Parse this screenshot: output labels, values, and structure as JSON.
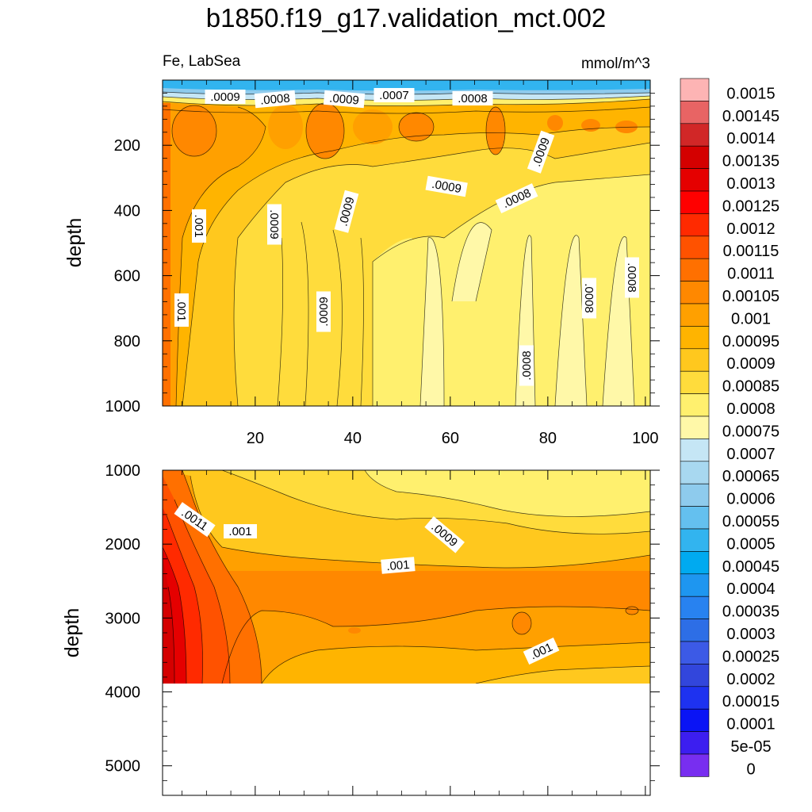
{
  "title": "b1850.f19_g17.validation_mct.002",
  "chart_data": [
    {
      "type": "heatmap",
      "plot_type": "filled contour",
      "panel": "upper",
      "left_label": "Fe, LabSea",
      "right_label": "mmol/m^3",
      "xlabel": "",
      "ylabel": "depth",
      "xlim": [
        1,
        101
      ],
      "ylim": [
        1000,
        0
      ],
      "x_ticks": [
        "20",
        "40",
        "60",
        "80",
        "100"
      ],
      "y_ticks": [
        "200",
        "400",
        "600",
        "800",
        "1000"
      ],
      "contour_labels": [
        ".0009",
        ".0008",
        ".0009",
        ".0007",
        ".0008",
        ".0009",
        ".0009",
        ".0008",
        ".001",
        ".0009",
        ".0009",
        ".001",
        ".0009",
        ".0008",
        ".0008",
        ".0008"
      ],
      "grid": false
    },
    {
      "type": "heatmap",
      "plot_type": "filled contour",
      "panel": "lower",
      "xlabel": "",
      "ylabel": "depth",
      "xlim": [
        1,
        101
      ],
      "ylim": [
        5400,
        1000
      ],
      "y_ticks": [
        "1000",
        "2000",
        "3000",
        "4000",
        "5000"
      ],
      "contour_labels": [
        ".0011",
        ".001",
        ".0009",
        ".001",
        ".001"
      ],
      "missing_below_depth": 3900,
      "grid": false
    }
  ],
  "colorbar": {
    "labels": [
      "0.0015",
      "0.00145",
      "0.0014",
      "0.00135",
      "0.0013",
      "0.00125",
      "0.0012",
      "0.00115",
      "0.0011",
      "0.00105",
      "0.001",
      "0.00095",
      "0.0009",
      "0.00085",
      "0.0008",
      "0.00075",
      "0.0007",
      "0.00065",
      "0.0006",
      "0.00055",
      "0.0005",
      "0.00045",
      "0.0004",
      "0.00035",
      "0.0003",
      "0.00025",
      "0.0002",
      "0.00015",
      "0.0001",
      "5e-05",
      "0"
    ],
    "colors": [
      "#fdb4b4",
      "#e86464",
      "#d12727",
      "#d40000",
      "#e50000",
      "#ff0000",
      "#ff2a00",
      "#ff5200",
      "#ff7000",
      "#ff8800",
      "#ffa000",
      "#ffb400",
      "#ffc81e",
      "#ffdc3c",
      "#fff06e",
      "#fff8a8",
      "#c5e6f5",
      "#a8d8f0",
      "#8ecbed",
      "#64c0ef",
      "#32b4ef",
      "#00aaf0",
      "#1e96f0",
      "#2882f0",
      "#2d6ee6",
      "#3c5ae6",
      "#3246dc",
      "#1e32f0",
      "#0a14f5",
      "#3c1ef0",
      "#782ef0"
    ]
  }
}
